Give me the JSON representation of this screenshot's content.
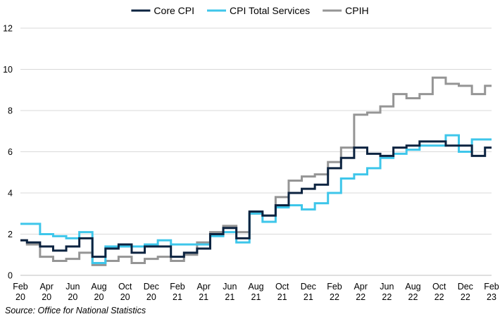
{
  "chart_data": {
    "type": "line",
    "step": true,
    "title": "",
    "xlabel": "",
    "ylabel": "",
    "ylim": [
      0,
      12
    ],
    "yticks": [
      0,
      2,
      4,
      6,
      8,
      10,
      12
    ],
    "grid": "horizontal",
    "legend": {
      "position": "top-center",
      "entries": [
        "Core CPI",
        "CPI Total Services",
        "CPIH"
      ]
    },
    "x": [
      "Feb 2020",
      "Mar 2020",
      "Apr 2020",
      "May 2020",
      "Jun 2020",
      "Jul 2020",
      "Aug 2020",
      "Sep 2020",
      "Oct 2020",
      "Nov 2020",
      "Dec 2020",
      "Jan 2021",
      "Feb 2021",
      "Mar 2021",
      "Apr 2021",
      "May 2021",
      "Jun 2021",
      "Jul 2021",
      "Aug 2021",
      "Sep 2021",
      "Oct 2021",
      "Nov 2021",
      "Dec 2021",
      "Jan 2022",
      "Feb 2022",
      "Mar 2022",
      "Apr 2022",
      "May 2022",
      "Jun 2022",
      "Jul 2022",
      "Aug 2022",
      "Sep 2022",
      "Oct 2022",
      "Nov 2022",
      "Dec 2022",
      "Jan 2023",
      "Feb 2023"
    ],
    "x_tick_labels": [
      [
        "Feb",
        "20"
      ],
      [
        "Apr",
        "20"
      ],
      [
        "Jun",
        "20"
      ],
      [
        "Aug",
        "20"
      ],
      [
        "Oct",
        "20"
      ],
      [
        "Dec",
        "20"
      ],
      [
        "Feb",
        "21"
      ],
      [
        "Apr",
        "21"
      ],
      [
        "Jun",
        "21"
      ],
      [
        "Aug",
        "21"
      ],
      [
        "Oct",
        "21"
      ],
      [
        "Dec",
        "21"
      ],
      [
        "Feb",
        "22"
      ],
      [
        "Apr",
        "22"
      ],
      [
        "Jun",
        "22"
      ],
      [
        "Aug",
        "22"
      ],
      [
        "Oct",
        "22"
      ],
      [
        "Dec",
        "22"
      ],
      [
        "Feb",
        "23"
      ]
    ],
    "series": [
      {
        "name": "Core CPI",
        "color": "#0c2340",
        "values": [
          1.7,
          1.6,
          1.4,
          1.2,
          1.4,
          1.8,
          0.9,
          1.3,
          1.5,
          1.1,
          1.4,
          1.4,
          0.9,
          1.1,
          1.3,
          2.0,
          2.3,
          1.8,
          3.1,
          2.9,
          3.4,
          4.0,
          4.2,
          4.4,
          5.2,
          5.7,
          6.2,
          5.9,
          5.8,
          6.2,
          6.3,
          6.5,
          6.5,
          6.3,
          6.3,
          5.8,
          6.2
        ]
      },
      {
        "name": "CPI Total Services",
        "color": "#3ec6ea",
        "values": [
          2.5,
          2.5,
          2.0,
          1.9,
          1.8,
          2.1,
          0.6,
          1.4,
          1.4,
          1.4,
          1.5,
          1.7,
          1.5,
          1.5,
          1.5,
          1.9,
          2.1,
          1.6,
          3.0,
          2.6,
          3.3,
          3.4,
          3.2,
          3.5,
          4.0,
          4.7,
          4.9,
          5.2,
          5.7,
          5.9,
          6.1,
          6.3,
          6.3,
          6.8,
          6.0,
          6.6,
          6.6
        ]
      },
      {
        "name": "CPIH",
        "color": "#959595",
        "values": [
          1.7,
          1.5,
          0.9,
          0.7,
          0.8,
          1.1,
          0.5,
          0.7,
          0.9,
          0.6,
          0.8,
          0.9,
          0.7,
          1.0,
          1.6,
          2.1,
          2.4,
          2.1,
          3.0,
          2.9,
          3.8,
          4.6,
          4.8,
          4.9,
          5.5,
          6.2,
          7.8,
          7.9,
          8.2,
          8.8,
          8.6,
          8.8,
          9.6,
          9.3,
          9.2,
          8.8,
          9.2
        ]
      }
    ],
    "source_note": "Source: Office for National Statistics"
  }
}
